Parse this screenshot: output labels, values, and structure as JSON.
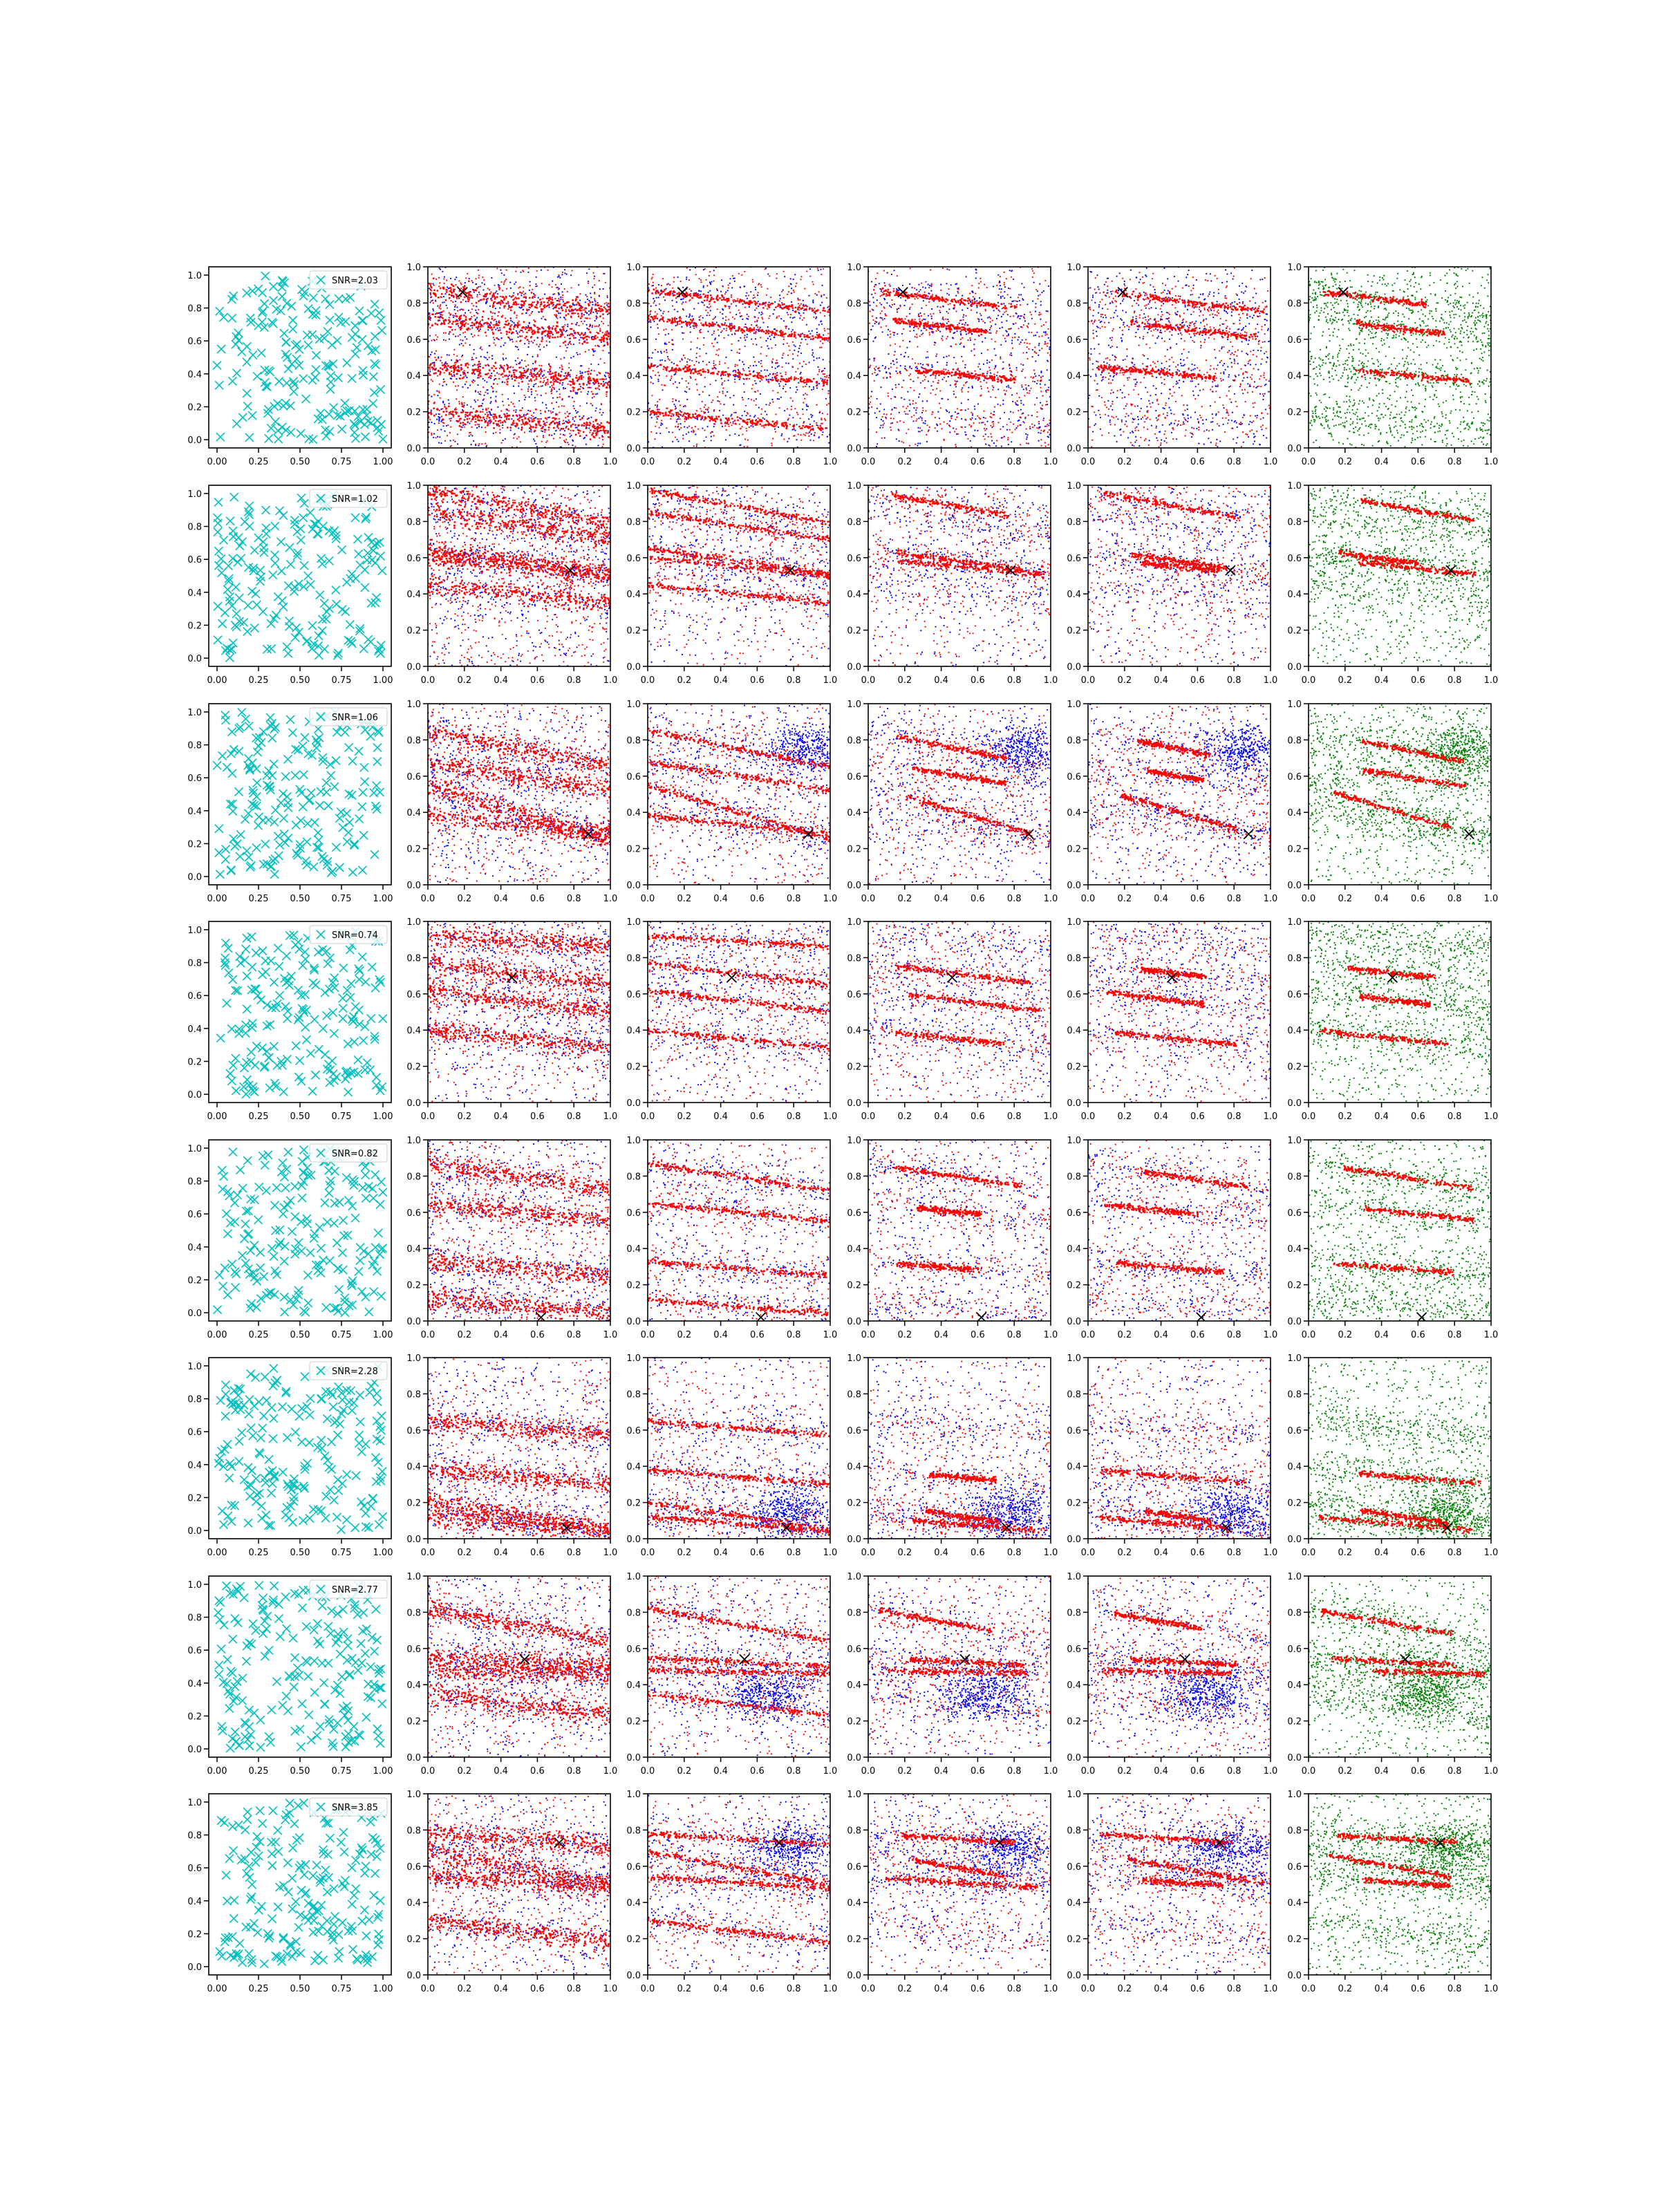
{
  "chart_data": {
    "type": "scatter",
    "layout": {
      "rows": 8,
      "cols": 6
    },
    "common_axes": {
      "first_column": {
        "xlim": [
          -0.05,
          1.05
        ],
        "ylim": [
          -0.05,
          1.05
        ],
        "xticks": [
          "0.00",
          "0.25",
          "0.50",
          "0.75",
          "1.00"
        ],
        "yticks": [
          "0.0",
          "0.2",
          "0.4",
          "0.6",
          "0.8",
          "1.0"
        ]
      },
      "other_columns": {
        "xlim": [
          0,
          1
        ],
        "ylim": [
          0,
          1
        ],
        "xticks": [
          "0.0",
          "0.2",
          "0.4",
          "0.6",
          "0.8",
          "1.0"
        ],
        "yticks": [
          "0.0",
          "0.2",
          "0.4",
          "0.6",
          "0.8",
          "1.0"
        ]
      }
    },
    "colors": {
      "points_random": "#00bfbf",
      "red": "#ff0000",
      "blue": "#0000ff",
      "green": "#008000",
      "marker": "#000000"
    },
    "legend": {
      "placement": "top-right"
    },
    "rows": [
      {
        "snr": "SNR=2.03",
        "marker": [
          0.19,
          0.86
        ],
        "lines": [
          [
            0.87,
            -0.12
          ],
          [
            0.72,
            -0.12
          ],
          [
            0.45,
            -0.09
          ],
          [
            0.2,
            -0.1
          ]
        ],
        "cluster": null
      },
      {
        "snr": "SNR=1.02",
        "marker": [
          0.78,
          0.53
        ],
        "lines": [
          [
            0.97,
            -0.18
          ],
          [
            0.65,
            -0.14
          ],
          [
            0.6,
            -0.1
          ],
          [
            0.85,
            -0.15
          ],
          [
            0.45,
            -0.1
          ]
        ],
        "cluster": null
      },
      {
        "snr": "SNR=1.06",
        "marker": [
          0.88,
          0.28
        ],
        "lines": [
          [
            0.55,
            -0.3
          ],
          [
            0.85,
            -0.2
          ],
          [
            0.68,
            -0.16
          ],
          [
            0.38,
            -0.1
          ]
        ],
        "cluster": [
          0.85,
          0.75
        ]
      },
      {
        "snr": "SNR=0.74",
        "marker": [
          0.46,
          0.69
        ],
        "lines": [
          [
            0.62,
            -0.12
          ],
          [
            0.77,
            -0.12
          ],
          [
            0.4,
            -0.1
          ],
          [
            0.92,
            -0.06
          ]
        ],
        "cluster": null
      },
      {
        "snr": "SNR=0.82",
        "marker": [
          0.62,
          0.02
        ],
        "lines": [
          [
            0.87,
            -0.15
          ],
          [
            0.33,
            -0.08
          ],
          [
            0.65,
            -0.1
          ],
          [
            0.12,
            -0.08
          ]
        ],
        "cluster": null
      },
      {
        "snr": "SNR=2.28",
        "marker": [
          0.76,
          0.06
        ],
        "lines": [
          [
            0.2,
            -0.15
          ],
          [
            0.12,
            -0.08
          ],
          [
            0.38,
            -0.08
          ],
          [
            0.65,
            -0.08
          ]
        ],
        "cluster": [
          0.78,
          0.15
        ]
      },
      {
        "snr": "SNR=2.77",
        "marker": [
          0.53,
          0.54
        ],
        "lines": [
          [
            0.55,
            -0.05
          ],
          [
            0.48,
            -0.02
          ],
          [
            0.82,
            -0.18
          ],
          [
            0.35,
            -0.12
          ]
        ],
        "cluster": [
          0.65,
          0.35
        ]
      },
      {
        "snr": "SNR=3.85",
        "marker": [
          0.72,
          0.73
        ],
        "lines": [
          [
            0.78,
            -0.06
          ],
          [
            0.68,
            -0.18
          ],
          [
            0.54,
            -0.06
          ],
          [
            0.3,
            -0.12
          ]
        ],
        "cluster": [
          0.78,
          0.7
        ]
      }
    ]
  }
}
